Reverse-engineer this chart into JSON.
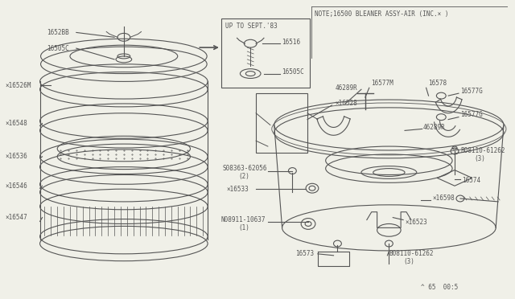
{
  "bg_color": "#f0f0e8",
  "line_color": "#555555",
  "note_text": "NOTE;16500 BLEANER ASSY-AIR (INC.× )",
  "inset_text": "UP TO SEPT.'83",
  "footer": "^ 65  00:5"
}
